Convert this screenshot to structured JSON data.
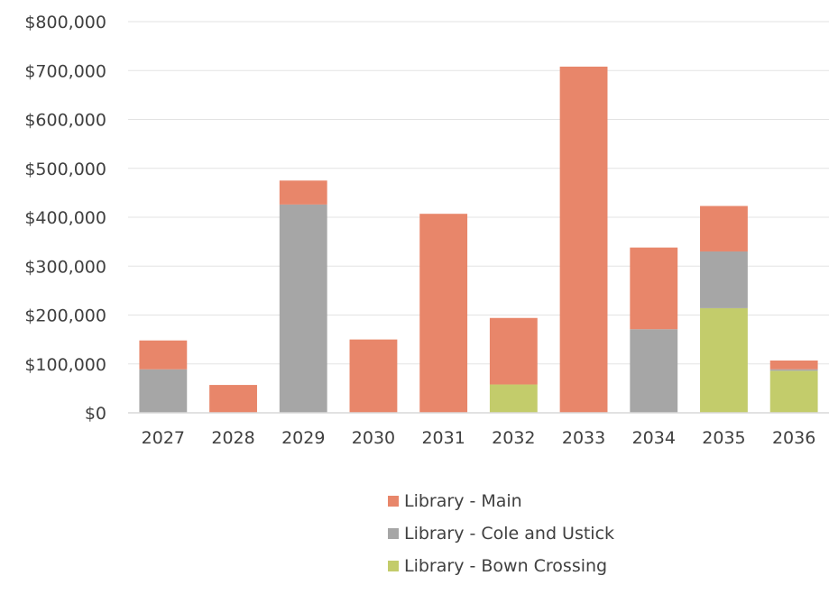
{
  "chart_data": {
    "type": "bar",
    "stacked": true,
    "title": "",
    "xlabel": "",
    "ylabel": "",
    "categories": [
      "2027",
      "2028",
      "2029",
      "2030",
      "2031",
      "2032",
      "2033",
      "2034",
      "2035",
      "2036"
    ],
    "ylim": [
      0,
      800000
    ],
    "y_ticks": [
      0,
      100000,
      200000,
      300000,
      400000,
      500000,
      600000,
      700000,
      800000
    ],
    "y_tick_labels": [
      "$0",
      "$100,000",
      "$200,000",
      "$300,000",
      "$400,000",
      "$500,000",
      "$600,000",
      "$700,000",
      "$800,000"
    ],
    "grid": true,
    "legend_position": "bottom",
    "series": [
      {
        "name": "Library - Bown Crossing",
        "color": "#c3cc6b",
        "values": [
          0,
          0,
          0,
          0,
          0,
          58000,
          0,
          0,
          214000,
          86000
        ]
      },
      {
        "name": "Library - Cole and Ustick",
        "color": "#a6a6a6",
        "values": [
          89000,
          0,
          426000,
          0,
          0,
          0,
          0,
          171000,
          116000,
          3000
        ]
      },
      {
        "name": "Library - Main",
        "color": "#e8866a",
        "values": [
          59000,
          57000,
          49000,
          150000,
          407000,
          136000,
          708000,
          167000,
          93000,
          18000
        ]
      }
    ],
    "legend_order": [
      "Library - Main",
      "Library - Cole and Ustick",
      "Library - Bown Crossing"
    ]
  }
}
